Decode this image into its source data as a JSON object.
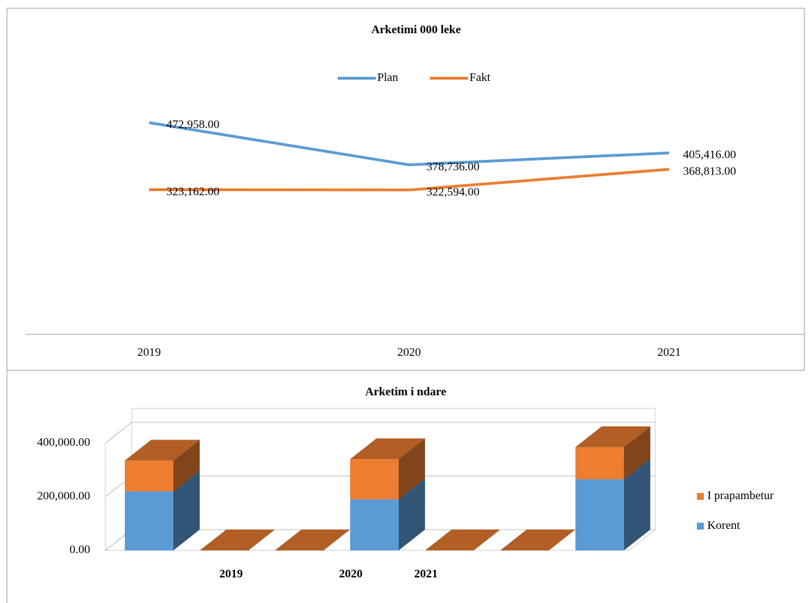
{
  "chart_data": [
    {
      "type": "line",
      "title": "Arketimi 000 leke",
      "categories": [
        "2019",
        "2020",
        "2021"
      ],
      "series": [
        {
          "name": "Plan",
          "color": "#5b9bd5",
          "values": [
            472958,
            378736,
            405416
          ],
          "value_labels": [
            "472,958.00",
            "378,736.00",
            "405,416.00"
          ]
        },
        {
          "name": "Fakt",
          "color": "#ed7d31",
          "values": [
            323162,
            322594,
            368813
          ],
          "value_labels": [
            "323,162.00",
            "322,594.00",
            "368,813.00"
          ]
        }
      ],
      "ylim": [
        0,
        600000
      ],
      "legend": "top"
    },
    {
      "type": "bar3d-stacked",
      "title": "Arketim i ndare",
      "categories": [
        null,
        "2019",
        null,
        "2020",
        "2021",
        null,
        null
      ],
      "series": [
        {
          "name": "Korent",
          "color": "#5b9bd5",
          "values": [
            220000,
            0,
            0,
            190000,
            0,
            0,
            265000
          ]
        },
        {
          "name": "I prapambetur",
          "color": "#ed7d31",
          "values": [
            115000,
            0,
            0,
            150000,
            0,
            0,
            120000
          ]
        }
      ],
      "ylim": [
        0,
        400000
      ],
      "yticks": [
        {
          "value": 0,
          "label": "0.00"
        },
        {
          "value": 200000,
          "label": "200,000.00"
        },
        {
          "value": 400000,
          "label": "400,000.00"
        }
      ],
      "grid": true,
      "legend": "right"
    }
  ]
}
